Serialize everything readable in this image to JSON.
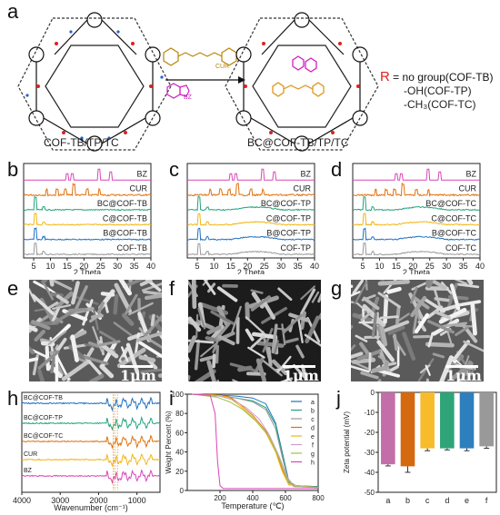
{
  "panels": {
    "a": {
      "label": "a",
      "left_caption": "COF-TB/TP/TC",
      "right_caption": "BC@COF-TB/TP/TC",
      "cur_tag": "CUR",
      "bz_tag": "BZ",
      "r_letter": "R",
      "r_def": " = no group(COF-TB)",
      "r_line2": "-OH(COF-TP)",
      "r_line3": "-CH₃(COF-TC)"
    },
    "b": {
      "label": "b",
      "axis": "2 Theta",
      "ticks": [
        "5",
        "10",
        "15",
        "20",
        "25",
        "30",
        "35",
        "40"
      ],
      "series": [
        {
          "name": "BZ",
          "color": "#d946b6"
        },
        {
          "name": "CUR",
          "color": "#e0710b"
        },
        {
          "name": "BC@COF-TB",
          "color": "#22a37d"
        },
        {
          "name": "C@COF-TB",
          "color": "#f3b515"
        },
        {
          "name": "B@COF-TB",
          "color": "#1f71c2"
        },
        {
          "name": "COF-TB",
          "color": "#999999"
        }
      ]
    },
    "c": {
      "label": "c",
      "axis": "2 Theta",
      "ticks": [
        "5",
        "10",
        "15",
        "20",
        "25",
        "30",
        "35",
        "40"
      ],
      "series": [
        {
          "name": "BZ",
          "color": "#d946b6"
        },
        {
          "name": "CUR",
          "color": "#e0710b"
        },
        {
          "name": "BC@COF-TP",
          "color": "#22a37d"
        },
        {
          "name": "C@COF-TP",
          "color": "#f3b515"
        },
        {
          "name": "B@COF-TP",
          "color": "#1f71c2"
        },
        {
          "name": "COF-TP",
          "color": "#999999"
        }
      ]
    },
    "d": {
      "label": "d",
      "axis": "2 Theta",
      "ticks": [
        "5",
        "10",
        "15",
        "20",
        "25",
        "30",
        "35",
        "40"
      ],
      "series": [
        {
          "name": "BZ",
          "color": "#d946b6"
        },
        {
          "name": "CUR",
          "color": "#e0710b"
        },
        {
          "name": "BC@COF-TC",
          "color": "#22a37d"
        },
        {
          "name": "C@COF-TC",
          "color": "#f3b515"
        },
        {
          "name": "B@COF-TC",
          "color": "#1f71c2"
        },
        {
          "name": "COF-TC",
          "color": "#999999"
        }
      ]
    },
    "e": {
      "label": "e",
      "scale": "1μm"
    },
    "f": {
      "label": "f",
      "scale": "1μm"
    },
    "g": {
      "label": "g",
      "scale": "1μm"
    },
    "h": {
      "label": "h",
      "axis": "Wavenumber (cm⁻¹)",
      "ticks": [
        "4000",
        "3000",
        "2000",
        "1000"
      ],
      "series": [
        "BC@COF-TB",
        "BC@COF-TP",
        "BC@COF-TC",
        "CUR",
        "BZ"
      ]
    },
    "i": {
      "label": "i",
      "ylabel": "Weight Percent (%)",
      "xlabel": "Temperature (℃)",
      "yticks": [
        "0",
        "20",
        "40",
        "60",
        "80",
        "100"
      ],
      "xticks": [
        "200",
        "400",
        "600",
        "800"
      ],
      "legend": [
        {
          "name": "a",
          "color": "#1f71c2"
        },
        {
          "name": "b",
          "color": "#22a37d"
        },
        {
          "name": "c",
          "color": "#999999"
        },
        {
          "name": "d",
          "color": "#e0710b"
        },
        {
          "name": "e",
          "color": "#f3b515"
        },
        {
          "name": "f",
          "color": "#c8a0c8"
        },
        {
          "name": "g",
          "color": "#9bc24a"
        },
        {
          "name": "h",
          "color": "#d946b6"
        }
      ]
    },
    "j": {
      "label": "j",
      "ylabel": "Zeta potential (mV)",
      "yticks": [
        "0",
        "-10",
        "-20",
        "-30",
        "-40",
        "-50"
      ]
    }
  },
  "chart_data": [
    {
      "type": "bar",
      "title": "",
      "ylabel": "Zeta potential (mV)",
      "ylim": [
        -50,
        0
      ],
      "categories": [
        "a",
        "b",
        "c",
        "d",
        "e",
        "f"
      ],
      "values": [
        -36,
        -37,
        -28,
        -28,
        -28,
        -27
      ],
      "errors": [
        0.8,
        3.0,
        1.2,
        0.8,
        1.2,
        1.0
      ],
      "colors": [
        "#c46ea9",
        "#d4690f",
        "#f7bb2c",
        "#2fa478",
        "#2e7fbd",
        "#999999"
      ]
    },
    {
      "type": "line",
      "title": "",
      "xlabel": "Temperature (℃)",
      "ylabel": "Weight Percent (%)",
      "xlim": [
        0,
        800
      ],
      "ylim": [
        0,
        100
      ],
      "series": [
        {
          "name": "a",
          "color": "#1f71c2",
          "x": [
            30,
            200,
            300,
            400,
            480,
            540,
            580,
            620,
            660,
            800
          ],
          "y": [
            100,
            99,
            98,
            96,
            90,
            70,
            40,
            10,
            5,
            4
          ]
        },
        {
          "name": "b",
          "color": "#22a37d",
          "x": [
            30,
            200,
            300,
            400,
            480,
            540,
            580,
            620,
            660,
            800
          ],
          "y": [
            100,
            98,
            96,
            93,
            86,
            68,
            38,
            9,
            5,
            4
          ]
        },
        {
          "name": "c",
          "color": "#999999",
          "x": [
            30,
            200,
            300,
            400,
            480,
            540,
            580,
            620,
            660,
            800
          ],
          "y": [
            100,
            98,
            96,
            92,
            84,
            64,
            35,
            8,
            4,
            3
          ]
        },
        {
          "name": "d",
          "color": "#e0710b",
          "x": [
            30,
            200,
            260,
            320,
            400,
            480,
            540,
            580,
            620,
            800
          ],
          "y": [
            100,
            99,
            97,
            90,
            78,
            62,
            42,
            22,
            6,
            3
          ]
        },
        {
          "name": "e",
          "color": "#f3b515",
          "x": [
            30,
            200,
            260,
            320,
            400,
            480,
            540,
            580,
            620,
            800
          ],
          "y": [
            100,
            99,
            96,
            88,
            76,
            60,
            40,
            20,
            6,
            3
          ]
        },
        {
          "name": "f",
          "color": "#c8a0c8",
          "x": [
            30,
            200,
            280,
            360,
            440,
            500,
            560,
            610,
            650,
            800
          ],
          "y": [
            100,
            98,
            94,
            86,
            74,
            58,
            36,
            14,
            5,
            3
          ]
        },
        {
          "name": "g",
          "color": "#9bc24a",
          "x": [
            30,
            180,
            260,
            340,
            420,
            500,
            560,
            610,
            650,
            800
          ],
          "y": [
            100,
            97,
            92,
            84,
            72,
            56,
            34,
            12,
            4,
            3
          ]
        },
        {
          "name": "h",
          "color": "#d946b6",
          "x": [
            30,
            140,
            170,
            185,
            200,
            220,
            800
          ],
          "y": [
            100,
            99,
            80,
            30,
            5,
            2,
            2
          ]
        }
      ]
    }
  ]
}
